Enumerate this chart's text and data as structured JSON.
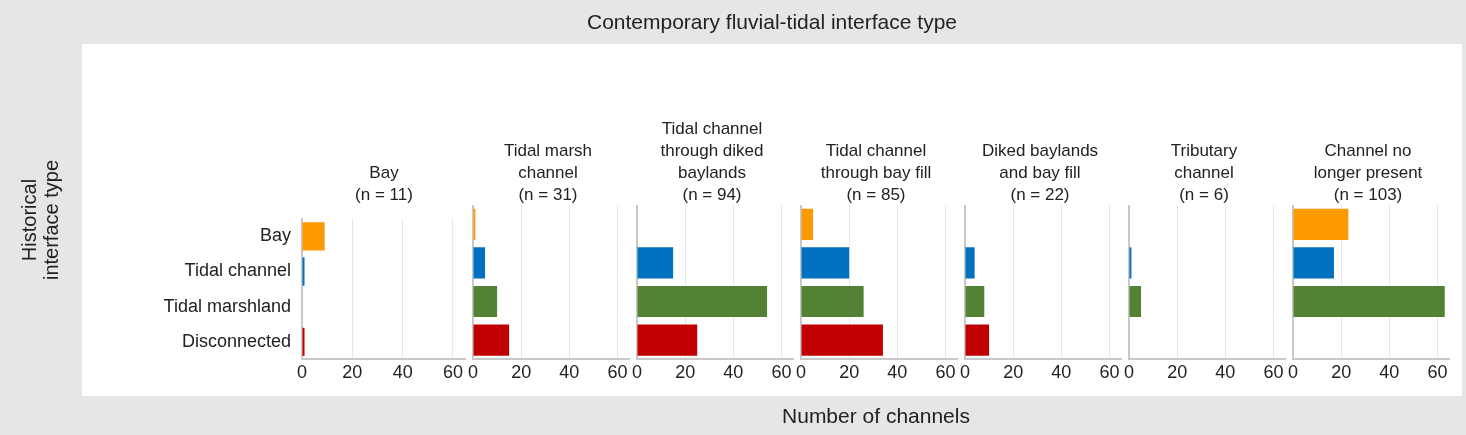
{
  "chart_data": [
    {
      "type": "bar",
      "orientation": "horizontal",
      "title": "Bay\n(n = 11)",
      "annotations": [
        "Contemporary fluvial-tidal interface type"
      ],
      "ylabel": "Historical\ninterface type",
      "categories": [
        "Bay",
        "Tidal channel",
        "Tidal marshland",
        "Disconnected"
      ],
      "values": [
        9,
        1,
        0,
        1
      ],
      "colors": [
        "#ff9900",
        "#0070c0",
        "#548235",
        "#c00000"
      ],
      "xlim": [
        0,
        65
      ],
      "xticks": [
        0,
        20,
        40,
        60
      ],
      "grid": "x"
    },
    {
      "type": "bar",
      "orientation": "horizontal",
      "title": "Tidal marsh\nchannel\n(n = 31)",
      "categories": [
        null,
        null,
        null,
        null
      ],
      "values": [
        1,
        5,
        10,
        15
      ],
      "colors": [
        "#ff9900",
        "#0070c0",
        "#548235",
        "#c00000"
      ],
      "xlim": [
        0,
        65
      ],
      "xticks": [
        0,
        20,
        40,
        60
      ],
      "grid": "x",
      "tick_labels": "x"
    },
    {
      "type": "bar",
      "orientation": "horizontal",
      "title": "Tidal channel\nthrough diked\nbaylands\n(n = 94)",
      "categories": [
        null,
        null,
        null,
        null
      ],
      "values": [
        0,
        15,
        54,
        25
      ],
      "colors": [
        "#ff9900",
        "#0070c0",
        "#548235",
        "#c00000"
      ],
      "xlim": [
        0,
        65
      ],
      "xticks": [
        0,
        20,
        40,
        60
      ],
      "grid": "x",
      "tick_labels": "x"
    },
    {
      "type": "bar",
      "orientation": "horizontal",
      "title": "Tidal channel\nthrough bay fill\n(n = 85)",
      "xlabel": "Number of channels",
      "categories": [
        null,
        null,
        null,
        null
      ],
      "values": [
        5,
        20,
        26,
        34
      ],
      "colors": [
        "#ff9900",
        "#0070c0",
        "#548235",
        "#c00000"
      ],
      "xlim": [
        0,
        65
      ],
      "xticks": [
        0,
        20,
        40,
        60
      ],
      "grid": "x",
      "tick_labels": "x"
    },
    {
      "type": "bar",
      "orientation": "horizontal",
      "title": "Diked baylands\nand bay fill\n(n = 22)",
      "categories": [
        null,
        null,
        null,
        null
      ],
      "values": [
        0,
        4,
        8,
        10
      ],
      "colors": [
        "#ff9900",
        "#0070c0",
        "#548235",
        "#c00000"
      ],
      "xlim": [
        0,
        65
      ],
      "xticks": [
        0,
        20,
        40,
        60
      ],
      "grid": "x",
      "tick_labels": "x"
    },
    {
      "type": "bar",
      "orientation": "horizontal",
      "title": "Tributary\nchannel\n(n = 6)",
      "categories": [
        null,
        null,
        null,
        null
      ],
      "values": [
        0,
        1,
        5,
        0
      ],
      "colors": [
        "#ff9900",
        "#0070c0",
        "#548235",
        "#c00000"
      ],
      "xlim": [
        0,
        65
      ],
      "xticks": [
        0,
        20,
        40,
        60
      ],
      "grid": "x",
      "tick_labels": "x"
    },
    {
      "type": "bar",
      "orientation": "horizontal",
      "title": "Channel no\nlonger present\n(n = 103)",
      "categories": [
        null,
        null,
        null,
        null
      ],
      "values": [
        23,
        17,
        63,
        0
      ],
      "colors": [
        "#ff9900",
        "#0070c0",
        "#548235",
        "#c00000"
      ],
      "xlim": [
        0,
        65
      ],
      "xticks": [
        0,
        20,
        40,
        60
      ],
      "grid": "x",
      "tick_labels": "x"
    }
  ]
}
